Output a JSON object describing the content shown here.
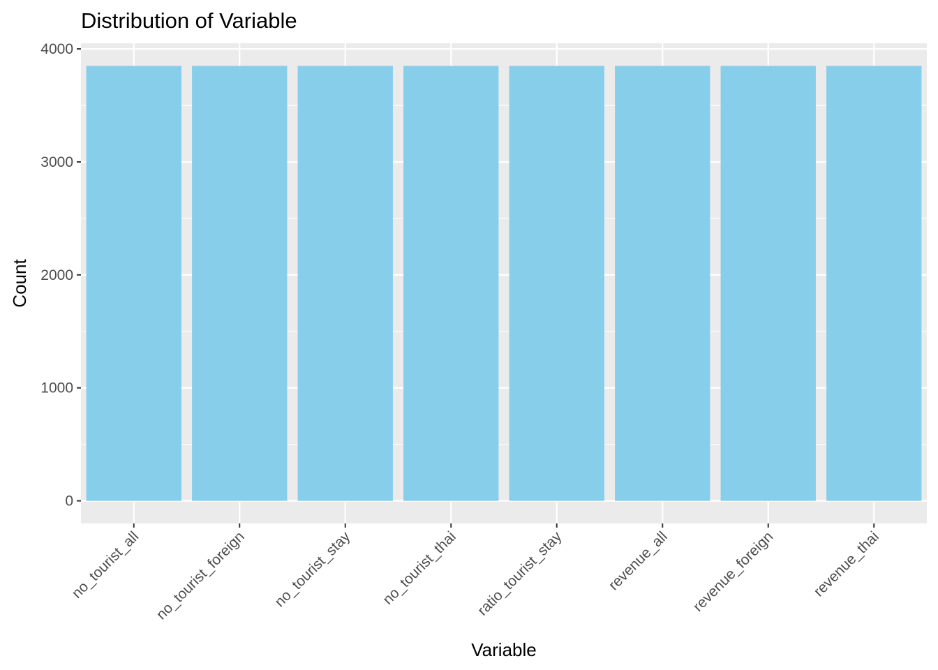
{
  "chart_data": {
    "type": "bar",
    "title": "Distribution of Variable",
    "xlabel": "Variable",
    "ylabel": "Count",
    "categories": [
      "no_tourist_all",
      "no_tourist_foreign",
      "no_tourist_stay",
      "no_tourist_thai",
      "ratio_tourist_stay",
      "revenue_all",
      "revenue_foreign",
      "revenue_thai"
    ],
    "values": [
      3850,
      3850,
      3850,
      3850,
      3850,
      3850,
      3850,
      3850
    ],
    "ylim": [
      -200,
      4050
    ],
    "yticks": [
      0,
      1000,
      2000,
      3000,
      4000
    ],
    "grid": true,
    "legend": "none",
    "colors": {
      "bar": "#87CEEB",
      "panel": "#EBEBEB",
      "grid": "#FFFFFF",
      "tick_text": "#4D4D4D",
      "tick_mark": "#333333"
    }
  }
}
